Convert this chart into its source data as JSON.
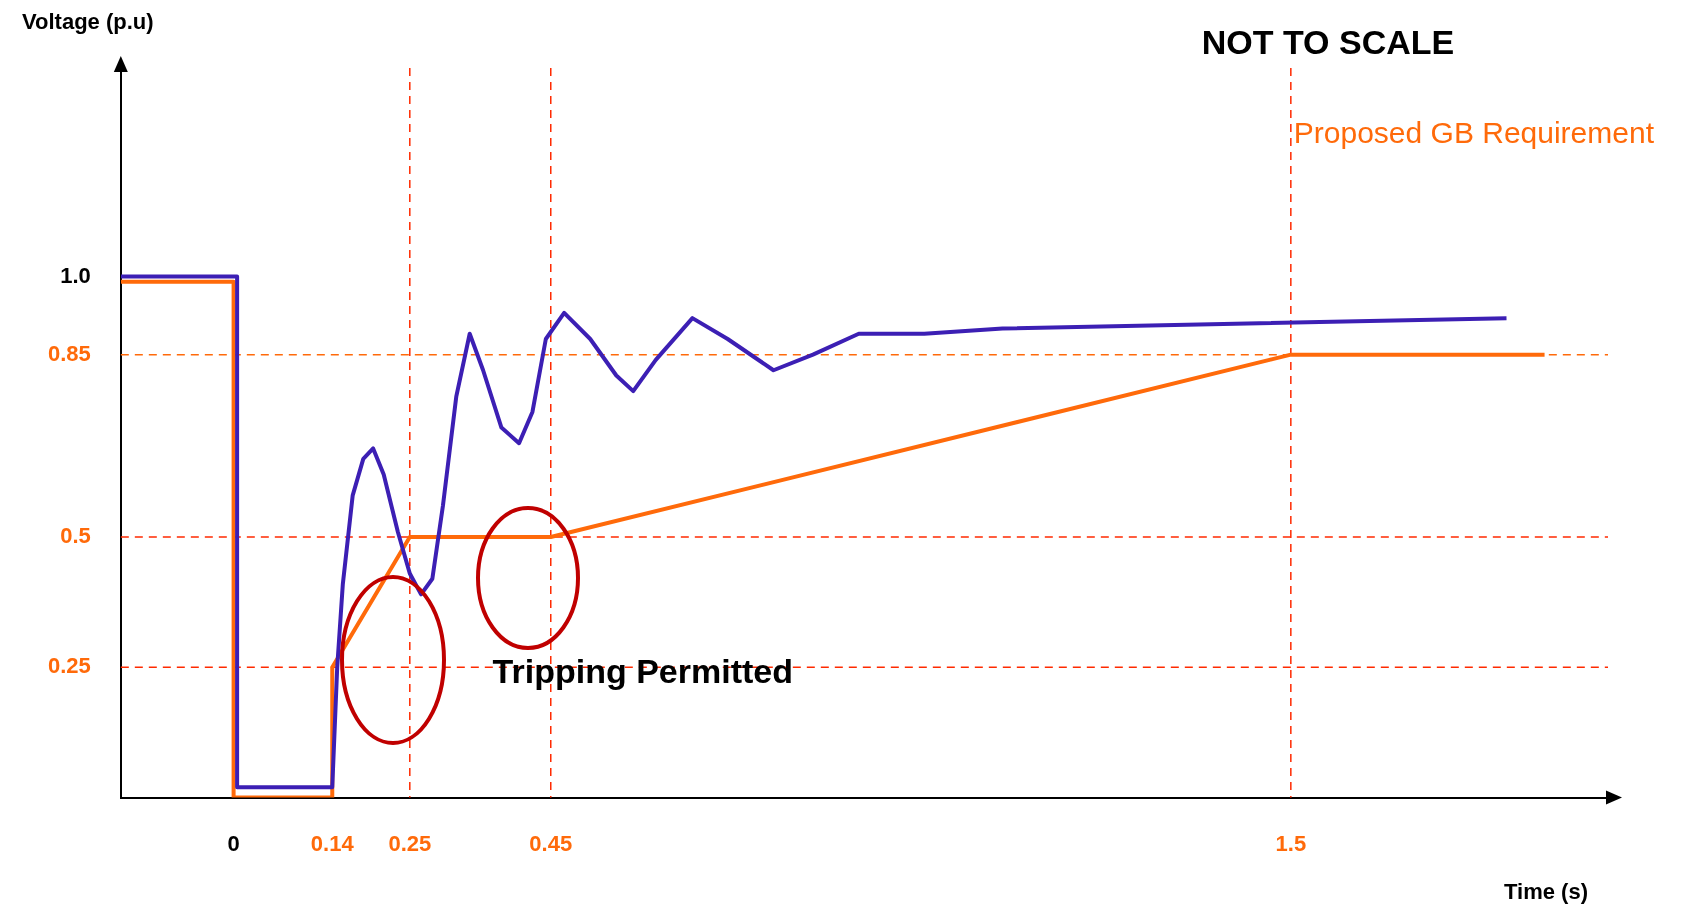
{
  "chart_data": {
    "type": "line",
    "xlabel": "Time (s)",
    "ylabel": "Voltage (p.u)",
    "annotations": [
      "NOT TO SCALE",
      "Tripping Permitted"
    ],
    "xlim": [
      -0.16,
      1.95
    ],
    "ylim": [
      0,
      1.4
    ],
    "xticks": [
      0,
      0.14,
      0.25,
      0.45,
      1.5
    ],
    "yticks": [
      0.25,
      0.5,
      0.85,
      {
        "value": 1,
        "label": "1.0"
      }
    ],
    "grid": false,
    "legend": "top right",
    "marker": "none",
    "line_style": "solid",
    "series": [
      {
        "color": "#3c1fb4",
        "x": [
          -0.16,
          0.005,
          0.005,
          0.14,
          0.147,
          0.155,
          0.169,
          0.184,
          0.198,
          0.213,
          0.233,
          0.25,
          0.266,
          0.282,
          0.297,
          0.316,
          0.335,
          0.354,
          0.38,
          0.405,
          0.424,
          0.443,
          0.469,
          0.506,
          0.543,
          0.567,
          0.599,
          0.651,
          0.701,
          0.766,
          0.822,
          0.887,
          0.98,
          1.091,
          1.806
        ],
        "values": [
          1,
          1,
          0.02,
          0.02,
          0.25,
          0.41,
          0.58,
          0.65,
          0.67,
          0.62,
          0.51,
          0.43,
          0.39,
          0.42,
          0.56,
          0.77,
          0.89,
          0.82,
          0.71,
          0.68,
          0.74,
          0.88,
          0.93,
          0.88,
          0.81,
          0.78,
          0.84,
          0.92,
          0.88,
          0.82,
          0.85,
          0.89,
          0.89,
          0.9,
          0.92
        ]
      },
      {
        "name": "Proposed GB Requirement",
        "color": "#ff6a0a",
        "x": [
          -0.16,
          0,
          0,
          0.14,
          0.14,
          0.25,
          0.45,
          1.5,
          1.86
        ],
        "values": [
          0.99,
          0.99,
          0,
          0,
          0.25,
          0.5,
          0.5,
          0.85,
          0.85
        ]
      }
    ],
    "ref_lines": [
      {
        "axis": "y",
        "value": 0.85,
        "color": "#ff6a0a",
        "line_style": "dashed"
      },
      {
        "axis": "y",
        "value": 0.5,
        "color": "#ff2a00",
        "line_style": "dashed"
      },
      {
        "axis": "y",
        "value": 0.25,
        "color": "#ff2a00",
        "line_style": "dashed"
      },
      {
        "axis": "x",
        "value": 0.25,
        "color": "#ff2a00",
        "line_style": "dashed"
      },
      {
        "axis": "x",
        "value": 0.45,
        "color": "#ff2a00",
        "line_style": "dashed"
      },
      {
        "axis": "x",
        "value": 1.5,
        "color": "#ff2a00",
        "line_style": "dashed"
      }
    ]
  }
}
